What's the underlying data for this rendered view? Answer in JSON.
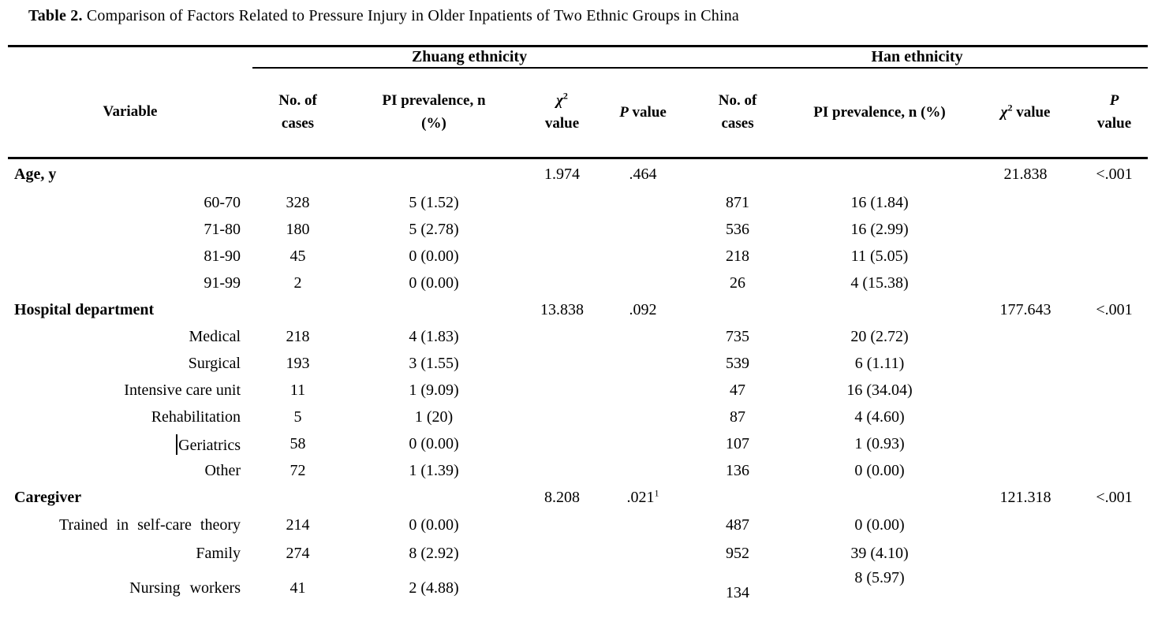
{
  "title": {
    "label": "Table 2.",
    "text": "Comparison of Factors Related to Pressure Injury in Older Inpatients of Two Ethnic Groups in China"
  },
  "table": {
    "groups": {
      "zhuang": "Zhuang ethnicity",
      "han": "Han ethnicity"
    },
    "headers": {
      "variable": "Variable",
      "zhuang": {
        "cases1": "No. of",
        "cases2": "cases",
        "pi1": "PI prevalence, n",
        "pi2": "(%)",
        "chi": "χ",
        "chi_sup": "2",
        "chi_word": "value",
        "p": "P",
        "p_word": "value"
      },
      "han": {
        "cases1": "No. of",
        "cases2": "cases",
        "pi": "PI prevalence, n (%)",
        "chi": "χ",
        "chi_sup": "2",
        "chi_word": "value",
        "p": "P",
        "p_word": "value"
      }
    },
    "rows": [
      {
        "label": "Age, y",
        "style": "group",
        "z_chi": "1.974",
        "z_p": ".464",
        "h_chi": "21.838",
        "h_p": "<.001"
      },
      {
        "label": "60-70",
        "style": "sub",
        "z_cases": "328",
        "z_pi": "5 (1.52)",
        "h_cases": "871",
        "h_pi": "16 (1.84)"
      },
      {
        "label": "71-80",
        "style": "sub",
        "z_cases": "180",
        "z_pi": "5 (2.78)",
        "h_cases": "536",
        "h_pi": "16 (2.99)"
      },
      {
        "label": "81-90",
        "style": "sub",
        "z_cases": "45",
        "z_pi": "0 (0.00)",
        "h_cases": "218",
        "h_pi": "11 (5.05)"
      },
      {
        "label": "91-99",
        "style": "sub",
        "z_cases": "2",
        "z_pi": "0 (0.00)",
        "h_cases": "26",
        "h_pi": "4 (15.38)"
      },
      {
        "label": "Hospital department",
        "style": "group",
        "z_chi": "13.838",
        "z_p": ".092",
        "h_chi": "177.643",
        "h_p": "<.001"
      },
      {
        "label": "Medical",
        "style": "sub",
        "z_cases": "218",
        "z_pi": "4 (1.83)",
        "h_cases": "735",
        "h_pi": "20 (2.72)"
      },
      {
        "label": "Surgical",
        "style": "sub",
        "z_cases": "193",
        "z_pi": "3 (1.55)",
        "h_cases": "539",
        "h_pi": "6 (1.11)"
      },
      {
        "label": "Intensive care unit",
        "style": "sub",
        "z_cases": "11",
        "z_pi": "1 (9.09)",
        "h_cases": "47",
        "h_pi": "16 (34.04)"
      },
      {
        "label": "Rehabilitation",
        "style": "sub",
        "z_cases": "5",
        "z_pi": "1 (20)",
        "h_cases": "87",
        "h_pi": "4 (4.60)"
      },
      {
        "label": "Geriatrics",
        "style": "sub",
        "has_text_cursor": true,
        "z_cases": "58",
        "z_pi": "0 (0.00)",
        "h_cases": "107",
        "h_pi": "1 (0.93)"
      },
      {
        "label": "Other",
        "style": "sub",
        "z_cases": "72",
        "z_pi": "1 (1.39)",
        "h_cases": "136",
        "h_pi": "0 (0.00)"
      },
      {
        "label": "Caregiver",
        "style": "group",
        "z_chi": "8.208",
        "z_p": ".021",
        "z_p_sup": "1",
        "h_chi": "121.318",
        "h_p": "<.001"
      },
      {
        "label": "Trained in self-care theory",
        "style": "sub",
        "z_cases": "214",
        "z_pi": "0 (0.00)",
        "h_cases": "487",
        "h_pi": "0 (0.00)"
      },
      {
        "label": "Family",
        "style": "sub",
        "z_cases": "274",
        "z_pi": "8 (2.92)",
        "h_cases": "952",
        "h_pi": "39 (4.10)"
      },
      {
        "label": "Nursing workers",
        "style": "sub",
        "z_cases": "41",
        "z_pi": "2 (4.88)",
        "h_cases": "134",
        "h_pi": "8 (5.97)"
      }
    ]
  }
}
